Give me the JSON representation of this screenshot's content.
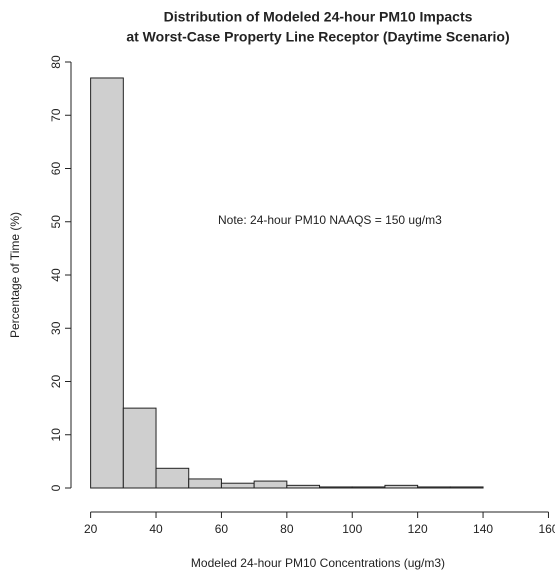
{
  "chart_data": {
    "type": "histogram",
    "title": [
      "Distribution of Modeled 24-hour PM10 Impacts",
      "at Worst-Case Property Line Receptor (Daytime Scenario)"
    ],
    "x_label": "Modeled 24-hour PM10 Concentrations (ug/m3)",
    "y_label": "Percentage of Time (%)",
    "annotation": "Note:  24-hour PM10 NAAQS = 150 ug/m3",
    "bins": [
      20,
      30,
      40,
      50,
      60,
      70,
      80,
      90,
      100,
      110,
      120,
      130,
      140
    ],
    "counts": [
      77,
      15,
      3.7,
      1.7,
      0.9,
      1.3,
      0.5,
      0.2,
      0.2,
      0.5,
      0.2,
      0.2
    ],
    "color": "#cfcfcf",
    "xlim": [
      14,
      162
    ],
    "xticks": [
      20,
      40,
      60,
      80,
      100,
      120,
      140,
      160
    ],
    "ylim": [
      0,
      80
    ],
    "yticks": [
      0,
      10,
      20,
      30,
      40,
      50,
      60,
      70,
      80
    ]
  }
}
